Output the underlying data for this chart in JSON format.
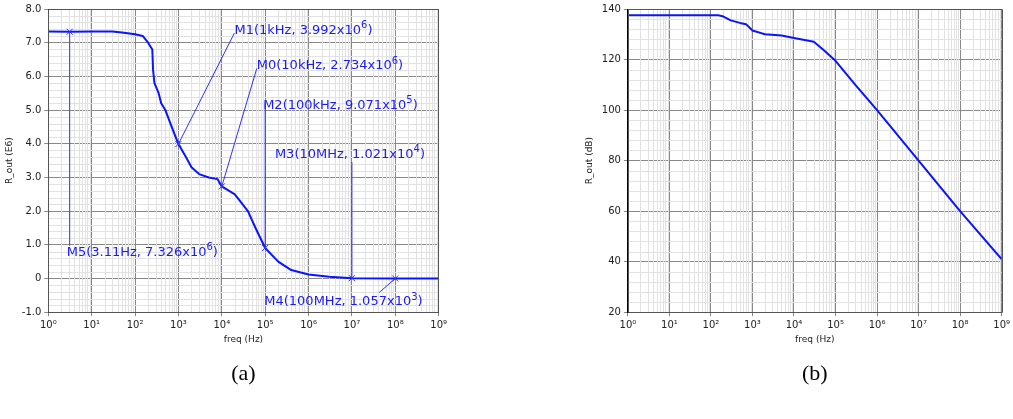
{
  "chart_data": [
    {
      "type": "line",
      "xlabel": "freq (Hz)",
      "ylabel": "R_out (E6)",
      "log": "x",
      "grid": true,
      "xlim": [
        1,
        1000000000
      ],
      "xticks": [
        {
          "value": 1,
          "label": "10⁰"
        },
        {
          "value": 10,
          "label": "10¹"
        },
        {
          "value": 100,
          "label": "10²"
        },
        {
          "value": 1000,
          "label": "10³"
        },
        {
          "value": 10000,
          "label": "10⁴"
        },
        {
          "value": 100000,
          "label": "10⁵"
        },
        {
          "value": 1000000,
          "label": "10⁶"
        },
        {
          "value": 10000000,
          "label": "10⁷"
        },
        {
          "value": 100000000,
          "label": "10⁸"
        },
        {
          "value": 1000000000,
          "label": "10⁹"
        }
      ],
      "ylim": [
        -1,
        8
      ],
      "yticks": [
        {
          "value": -1,
          "label": "-1.0"
        },
        0,
        {
          "value": 1,
          "label": "1.0"
        },
        {
          "value": 2,
          "label": "2.0"
        },
        {
          "value": 3,
          "label": "3.0"
        },
        {
          "value": 4,
          "label": "4.0"
        },
        {
          "value": 5,
          "label": "5.0"
        },
        {
          "value": 6,
          "label": "6.0"
        },
        {
          "value": 7,
          "label": "7.0"
        },
        {
          "value": 8,
          "label": "8.0"
        }
      ],
      "x": [
        1,
        3.11,
        10,
        30,
        50,
        100,
        150,
        200,
        250,
        260,
        280,
        350,
        400,
        500,
        700,
        1000,
        1500,
        2000,
        3000,
        5000,
        8000,
        10000,
        20000,
        40000,
        60000,
        100000,
        200000,
        400000,
        1000000,
        3000000,
        10000000,
        100000000,
        1000000000
      ],
      "series": [
        {
          "color": "#0a14ff",
          "values": [
            7.33,
            7.326,
            7.33,
            7.33,
            7.3,
            7.25,
            7.2,
            7.0,
            6.8,
            6.2,
            5.8,
            5.5,
            5.2,
            5.0,
            4.5,
            3.992,
            3.6,
            3.3,
            3.1,
            3.0,
            2.95,
            2.734,
            2.5,
            2.0,
            1.5,
            0.9071,
            0.5,
            0.25,
            0.12,
            0.05,
            0.01021,
            0.001057,
            0.001
          ]
        }
      ],
      "annotations": [
        {
          "text": "M1(1kHz, 3.992x10$^{6}$)",
          "x": 1000,
          "y": 3.992
        },
        {
          "text": "M0(10kHz, 2.734x10$^{6}$)",
          "x": 10000,
          "y": 2.734
        },
        {
          "text": "M2(100kHz, 9.071x10$^{5}$)",
          "x": 100000,
          "y": 0.9071
        },
        {
          "text": "M3(10MHz, 1.021x10$^{4}$)",
          "x": 10000000,
          "y": 0.01021
        },
        {
          "text": "M4(100MHz, 1.057x10$^{3}$)",
          "x": 100000000,
          "y": 0.001057
        },
        {
          "text": "M5(3.11Hz, 7.326x10$^{6}$)",
          "x": 3.11,
          "y": 7.326
        },
        "(a)"
      ]
    },
    {
      "type": "line",
      "xlabel": "freq (Hz)",
      "ylabel": "R_out (dB)",
      "log": "x",
      "grid": true,
      "xlim": [
        1,
        1000000000
      ],
      "xticks": [
        {
          "value": 1,
          "label": "10⁰"
        },
        {
          "value": 10,
          "label": "10¹"
        },
        {
          "value": 100,
          "label": "10²"
        },
        {
          "value": 1000,
          "label": "10³"
        },
        {
          "value": 10000,
          "label": "10⁴"
        },
        {
          "value": 100000,
          "label": "10⁵"
        },
        {
          "value": 1000000,
          "label": "10⁶"
        },
        {
          "value": 10000000,
          "label": "10⁷"
        },
        {
          "value": 100000000,
          "label": "10⁸"
        },
        {
          "value": 1000000000,
          "label": "10⁹"
        }
      ],
      "ylim": [
        20,
        140
      ],
      "yticks": [
        20,
        40,
        60,
        80,
        100,
        120,
        140
      ],
      "x": [
        1,
        100,
        150,
        200,
        300,
        500,
        700,
        1000,
        2000,
        5000,
        10000,
        30000,
        50000,
        100000,
        300000,
        1000000,
        10000000,
        100000000,
        1000000000
      ],
      "series": [
        {
          "color": "#0a14ff",
          "values": [
            137.5,
            137.5,
            137.5,
            137,
            135.5,
            134.5,
            134,
            131.5,
            130,
            129.5,
            128.5,
            127,
            124,
            119.5,
            110,
            100,
            80,
            60,
            41
          ]
        }
      ],
      "annotations": [
        "(b)"
      ]
    }
  ]
}
